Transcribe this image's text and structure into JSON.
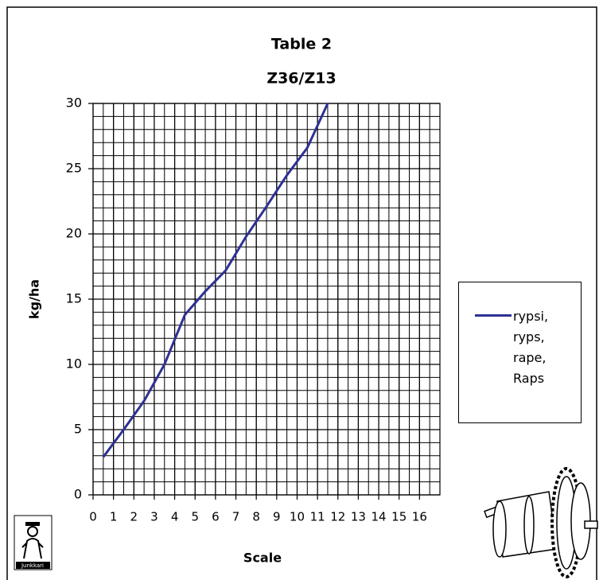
{
  "chart_data": {
    "type": "line",
    "title": "Table 2",
    "subtitle": "Z36/Z13",
    "x_label": "Scale",
    "y_label": "kg/ha",
    "x": [
      0.5,
      1.5,
      2.5,
      3.5,
      4.5,
      5.5,
      6.5,
      7.5,
      8.5,
      9.5,
      10.5,
      11.5
    ],
    "series": [
      {
        "name": "rypsi, ryps, rape, Raps",
        "color": "#2e3192",
        "values": [
          2.9,
          5,
          7.2,
          10,
          13.8,
          15.6,
          17.2,
          19.8,
          22.1,
          24.5,
          26.6,
          30
        ]
      }
    ],
    "xlim": [
      0,
      17
    ],
    "xticks": [
      0,
      1,
      2,
      3,
      4,
      5,
      6,
      7,
      8,
      9,
      10,
      11,
      12,
      13,
      14,
      15,
      16
    ],
    "ylim": [
      0,
      30
    ],
    "yticks": [
      0,
      5,
      10,
      15,
      20,
      25,
      30
    ],
    "grid": true,
    "legend": "right",
    "logo_text": "Junkkari"
  }
}
